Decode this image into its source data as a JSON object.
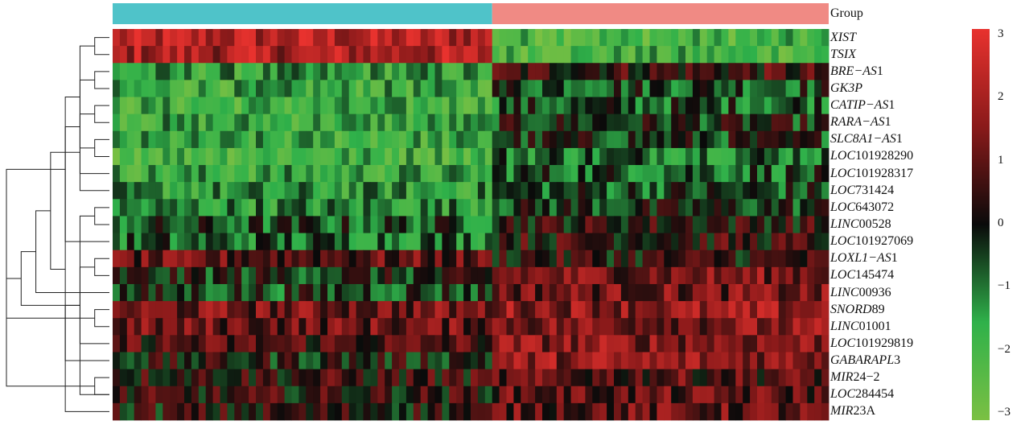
{
  "chart_data": {
    "type": "heatmap",
    "legend_title": "Group",
    "groups": [
      {
        "color": "#4fc3c9"
      },
      {
        "color": "#f08a84"
      }
    ],
    "samples_per_group": [
      53,
      47
    ],
    "rows": [
      {
        "prefix": "XIST",
        "suffix": ""
      },
      {
        "prefix": "TSIX",
        "suffix": ""
      },
      {
        "prefix": "BRE−AS",
        "suffix": "1"
      },
      {
        "prefix": "GK3P",
        "suffix": ""
      },
      {
        "prefix": "CATIP−AS",
        "suffix": "1"
      },
      {
        "prefix": "RARA−AS",
        "suffix": "1"
      },
      {
        "prefix": "SLC8A1−AS",
        "suffix": "1"
      },
      {
        "prefix": "LOC",
        "suffix": "101928290"
      },
      {
        "prefix": "LOC",
        "suffix": "101928317"
      },
      {
        "prefix": "LOC",
        "suffix": "731424"
      },
      {
        "prefix": "LOC",
        "suffix": "643072"
      },
      {
        "prefix": "LINC",
        "suffix": "00528"
      },
      {
        "prefix": "LOC",
        "suffix": "101927069"
      },
      {
        "prefix": "LOXL1−AS",
        "suffix": "1"
      },
      {
        "prefix": "LOC",
        "suffix": "145474"
      },
      {
        "prefix": "LINC",
        "suffix": "00936"
      },
      {
        "prefix": "SNORD",
        "suffix": "89"
      },
      {
        "prefix": "LINC",
        "suffix": "01001"
      },
      {
        "prefix": "LOC",
        "suffix": "101929819"
      },
      {
        "prefix": "GABARAPL",
        "suffix": "3"
      },
      {
        "prefix": "MIR",
        "suffix": "24−2"
      },
      {
        "prefix": "LOC",
        "suffix": "284454"
      },
      {
        "prefix": "MIR",
        "suffix": "23A"
      }
    ],
    "row_mean_group1": [
      2.1,
      2.0,
      -1.5,
      -1.7,
      -1.8,
      -1.6,
      -1.7,
      -1.8,
      -1.6,
      -1.4,
      -1.2,
      -0.6,
      -0.8,
      0.9,
      -0.2,
      -0.4,
      1.2,
      1.1,
      0.7,
      0.0,
      0.4,
      0.3,
      0.2
    ],
    "row_mean_group2": [
      -2.0,
      -1.9,
      0.5,
      -0.4,
      -0.6,
      -0.2,
      -0.3,
      -0.8,
      -0.6,
      -0.5,
      -0.3,
      0.3,
      0.4,
      0.3,
      1.3,
      1.2,
      1.6,
      1.4,
      1.5,
      1.6,
      0.8,
      0.9,
      1.0
    ],
    "color_scale": {
      "min": -3,
      "max": 3,
      "stops": [
        "#7bc043",
        "#2fb14a",
        "#0a0a0a",
        "#8a1a1a",
        "#e8322e"
      ],
      "ticks": [
        "3",
        "2",
        "1",
        "0",
        "−1",
        "−2",
        "−3"
      ]
    },
    "row_dendrogram": [
      [
        0,
        1
      ],
      [
        2,
        3
      ],
      [
        4,
        5
      ],
      [
        6,
        7
      ],
      [
        24,
        8
      ],
      [
        25,
        9
      ],
      [
        23,
        26
      ],
      [
        22,
        27
      ],
      [
        10,
        11
      ],
      [
        29,
        12
      ],
      [
        28,
        30
      ],
      [
        21,
        31
      ],
      [
        13,
        14
      ],
      [
        33,
        15
      ],
      [
        16,
        17
      ],
      [
        35,
        18
      ],
      [
        34,
        36
      ],
      [
        20,
        21
      ],
      [
        19,
        38
      ],
      [
        37,
        39
      ],
      [
        32,
        40
      ]
    ]
  }
}
